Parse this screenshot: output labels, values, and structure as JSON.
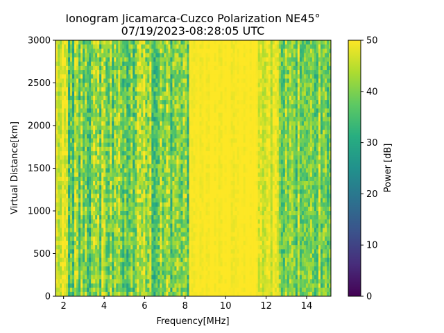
{
  "chart_data": {
    "type": "heatmap",
    "title": "Ionogram Jicamarca-Cuzco Polarization NE45°",
    "subtitle": "07/19/2023-08:28:05 UTC",
    "xlabel": "Frequency[MHz]",
    "ylabel": "Virtual Distance[km]",
    "xlim": [
      1.6,
      15.2
    ],
    "ylim": [
      0,
      3000
    ],
    "xticks": [
      2,
      4,
      6,
      8,
      10,
      12,
      14
    ],
    "yticks": [
      0,
      500,
      1000,
      1500,
      2000,
      2500,
      3000
    ],
    "grid": false,
    "colorbar": {
      "label": "Power [dB]",
      "range": [
        0,
        50
      ],
      "ticks": [
        0,
        10,
        20,
        30,
        40,
        50
      ],
      "colormap": "viridis"
    },
    "frequency_bands": [
      {
        "from": 1.6,
        "to": 2.2,
        "typical_power_db": 47,
        "noise_db": 8
      },
      {
        "from": 2.2,
        "to": 8.2,
        "typical_power_db": 40,
        "noise_db": 14
      },
      {
        "from": 8.2,
        "to": 11.6,
        "typical_power_db": 50,
        "noise_db": 2
      },
      {
        "from": 11.6,
        "to": 12.6,
        "typical_power_db": 47,
        "noise_db": 6
      },
      {
        "from": 12.6,
        "to": 15.2,
        "typical_power_db": 40,
        "noise_db": 12
      }
    ]
  }
}
